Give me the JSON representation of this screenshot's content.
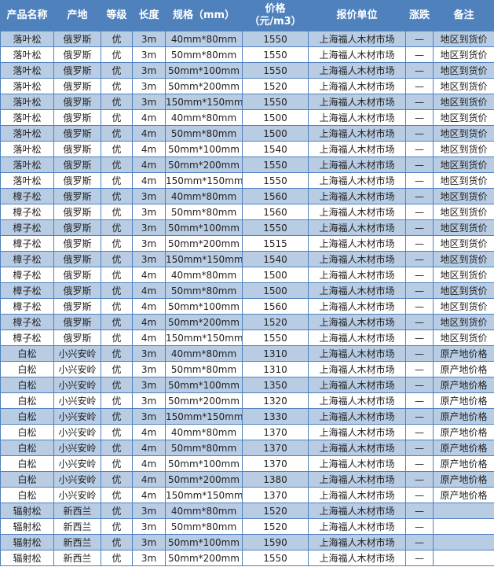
{
  "colors": {
    "header_bg": "#4F81BD",
    "odd_row_bg": "#B8CCE4",
    "even_row_bg": "#FFFFFF"
  },
  "table": {
    "headers": [
      "产品名称",
      "产地",
      "等级",
      "长度",
      "规格（mm）",
      "价格（元/m3）",
      "报价单位",
      "涨跌",
      "备注"
    ],
    "rows": [
      [
        "落叶松",
        "俄罗斯",
        "优",
        "3m",
        "40mm*80mm",
        "1550",
        "上海福人木材市场",
        "—",
        "地区到货价"
      ],
      [
        "落叶松",
        "俄罗斯",
        "优",
        "3m",
        "50mm*80mm",
        "1550",
        "上海福人木材市场",
        "—",
        "地区到货价"
      ],
      [
        "落叶松",
        "俄罗斯",
        "优",
        "3m",
        "50mm*100mm",
        "1550",
        "上海福人木材市场",
        "—",
        "地区到货价"
      ],
      [
        "落叶松",
        "俄罗斯",
        "优",
        "3m",
        "50mm*200mm",
        "1520",
        "上海福人木材市场",
        "—",
        "地区到货价"
      ],
      [
        "落叶松",
        "俄罗斯",
        "优",
        "3m",
        "150mm*150mm",
        "1550",
        "上海福人木材市场",
        "—",
        "地区到货价"
      ],
      [
        "落叶松",
        "俄罗斯",
        "优",
        "4m",
        "40mm*80mm",
        "1500",
        "上海福人木材市场",
        "—",
        "地区到货价"
      ],
      [
        "落叶松",
        "俄罗斯",
        "优",
        "4m",
        "50mm*80mm",
        "1500",
        "上海福人木材市场",
        "—",
        "地区到货价"
      ],
      [
        "落叶松",
        "俄罗斯",
        "优",
        "4m",
        "50mm*100mm",
        "1540",
        "上海福人木材市场",
        "—",
        "地区到货价"
      ],
      [
        "落叶松",
        "俄罗斯",
        "优",
        "4m",
        "50mm*200mm",
        "1550",
        "上海福人木材市场",
        "—",
        "地区到货价"
      ],
      [
        "落叶松",
        "俄罗斯",
        "优",
        "4m",
        "150mm*150mm",
        "1550",
        "上海福人木材市场",
        "—",
        "地区到货价"
      ],
      [
        "樟子松",
        "俄罗斯",
        "优",
        "3m",
        "40mm*80mm",
        "1560",
        "上海福人木材市场",
        "—",
        "地区到货价"
      ],
      [
        "樟子松",
        "俄罗斯",
        "优",
        "3m",
        "50mm*80mm",
        "1560",
        "上海福人木材市场",
        "—",
        "地区到货价"
      ],
      [
        "樟子松",
        "俄罗斯",
        "优",
        "3m",
        "50mm*100mm",
        "1550",
        "上海福人木材市场",
        "—",
        "地区到货价"
      ],
      [
        "樟子松",
        "俄罗斯",
        "优",
        "3m",
        "50mm*200mm",
        "1515",
        "上海福人木材市场",
        "—",
        "地区到货价"
      ],
      [
        "樟子松",
        "俄罗斯",
        "优",
        "3m",
        "150mm*150mm",
        "1540",
        "上海福人木材市场",
        "—",
        "地区到货价"
      ],
      [
        "樟子松",
        "俄罗斯",
        "优",
        "4m",
        "40mm*80mm",
        "1500",
        "上海福人木材市场",
        "—",
        "地区到货价"
      ],
      [
        "樟子松",
        "俄罗斯",
        "优",
        "4m",
        "50mm*80mm",
        "1500",
        "上海福人木材市场",
        "—",
        "地区到货价"
      ],
      [
        "樟子松",
        "俄罗斯",
        "优",
        "4m",
        "50mm*100mm",
        "1560",
        "上海福人木材市场",
        "—",
        "地区到货价"
      ],
      [
        "樟子松",
        "俄罗斯",
        "优",
        "4m",
        "50mm*200mm",
        "1520",
        "上海福人木材市场",
        "—",
        "地区到货价"
      ],
      [
        "樟子松",
        "俄罗斯",
        "优",
        "4m",
        "150mm*150mm",
        "1550",
        "上海福人木材市场",
        "—",
        "地区到货价"
      ],
      [
        "白松",
        "小兴安岭",
        "优",
        "3m",
        "40mm*80mm",
        "1310",
        "上海福人木材市场",
        "—",
        "原产地价格"
      ],
      [
        "白松",
        "小兴安岭",
        "优",
        "3m",
        "50mm*80mm",
        "1310",
        "上海福人木材市场",
        "—",
        "原产地价格"
      ],
      [
        "白松",
        "小兴安岭",
        "优",
        "3m",
        "50mm*100mm",
        "1350",
        "上海福人木材市场",
        "—",
        "原产地价格"
      ],
      [
        "白松",
        "小兴安岭",
        "优",
        "3m",
        "50mm*200mm",
        "1320",
        "上海福人木材市场",
        "—",
        "原产地价格"
      ],
      [
        "白松",
        "小兴安岭",
        "优",
        "3m",
        "150mm*150mm",
        "1330",
        "上海福人木材市场",
        "—",
        "原产地价格"
      ],
      [
        "白松",
        "小兴安岭",
        "优",
        "4m",
        "40mm*80mm",
        "1370",
        "上海福人木材市场",
        "—",
        "原产地价格"
      ],
      [
        "白松",
        "小兴安岭",
        "优",
        "4m",
        "50mm*80mm",
        "1370",
        "上海福人木材市场",
        "—",
        "原产地价格"
      ],
      [
        "白松",
        "小兴安岭",
        "优",
        "4m",
        "50mm*100mm",
        "1370",
        "上海福人木材市场",
        "—",
        "原产地价格"
      ],
      [
        "白松",
        "小兴安岭",
        "优",
        "4m",
        "50mm*200mm",
        "1380",
        "上海福人木材市场",
        "—",
        "原产地价格"
      ],
      [
        "白松",
        "小兴安岭",
        "优",
        "4m",
        "150mm*150mm",
        "1370",
        "上海福人木材市场",
        "—",
        "原产地价格"
      ],
      [
        "辐射松",
        "新西兰",
        "优",
        "3m",
        "40mm*80mm",
        "1520",
        "上海福人木材市场",
        "—",
        ""
      ],
      [
        "辐射松",
        "新西兰",
        "优",
        "3m",
        "50mm*80mm",
        "1520",
        "上海福人木材市场",
        "—",
        ""
      ],
      [
        "辐射松",
        "新西兰",
        "优",
        "3m",
        "50mm*100mm",
        "1590",
        "上海福人木材市场",
        "—",
        ""
      ],
      [
        "辐射松",
        "新西兰",
        "优",
        "3m",
        "50mm*200mm",
        "1550",
        "上海福人木材市场",
        "—",
        ""
      ]
    ]
  }
}
